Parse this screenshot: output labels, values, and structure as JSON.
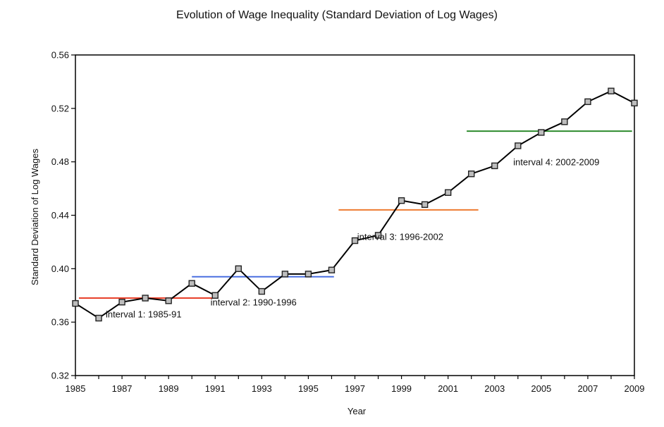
{
  "chart_data": {
    "type": "line",
    "title": "Evolution of Wage Inequality (Standard Deviation of Log Wages)",
    "xlabel": "Year",
    "ylabel": "Standard Deviation of Log Wages",
    "xlim": [
      1985,
      2009
    ],
    "ylim": [
      0.32,
      0.56
    ],
    "x_ticks": [
      1985,
      1987,
      1989,
      1991,
      1993,
      1995,
      1997,
      1999,
      2001,
      2003,
      2005,
      2007,
      2009
    ],
    "y_ticks": [
      0.32,
      0.36,
      0.4,
      0.44,
      0.48,
      0.52,
      0.56
    ],
    "y_tick_labels": [
      "0.32",
      "0.36",
      "0.40",
      "0.44",
      "0.48",
      "0.52",
      "0.56"
    ],
    "grid": false,
    "series": [
      {
        "color": "#000000",
        "marker": "square",
        "x": [
          1985,
          1986,
          1987,
          1988,
          1989,
          1990,
          1991,
          1992,
          1993,
          1994,
          1995,
          1996,
          1997,
          1998,
          1999,
          2000,
          2001,
          2002,
          2003,
          2004,
          2005,
          2006,
          2007,
          2008,
          2009
        ],
        "values": [
          0.374,
          0.363,
          0.375,
          0.378,
          0.376,
          0.389,
          0.38,
          0.4,
          0.383,
          0.396,
          0.396,
          0.399,
          0.421,
          0.425,
          0.451,
          0.448,
          0.457,
          0.471,
          0.477,
          0.492,
          0.502,
          0.51,
          0.525,
          0.533,
          0.524
        ]
      }
    ],
    "intervals": [
      {
        "label": "interval 1: 1985-91",
        "x_start": 1985.15,
        "x_end": 1990.9,
        "value": 0.378,
        "color": "#e8402a",
        "label_x": 1986.3,
        "label_y": 0.3635
      },
      {
        "label": "interval 2: 1990-1996",
        "x_start": 1990.0,
        "x_end": 1996.1,
        "value": 0.394,
        "color": "#4a6fe0",
        "label_x": 1990.8,
        "label_y": 0.3725
      },
      {
        "label": "interval 3: 1996-2002",
        "x_start": 1996.3,
        "x_end": 2002.3,
        "value": 0.444,
        "color": "#ee7b30",
        "label_x": 1997.1,
        "label_y": 0.4215
      },
      {
        "label": "interval 4: 2002-2009",
        "x_start": 2001.8,
        "x_end": 2008.9,
        "value": 0.503,
        "color": "#2e8b2e",
        "label_x": 2003.8,
        "label_y": 0.4775
      }
    ]
  }
}
